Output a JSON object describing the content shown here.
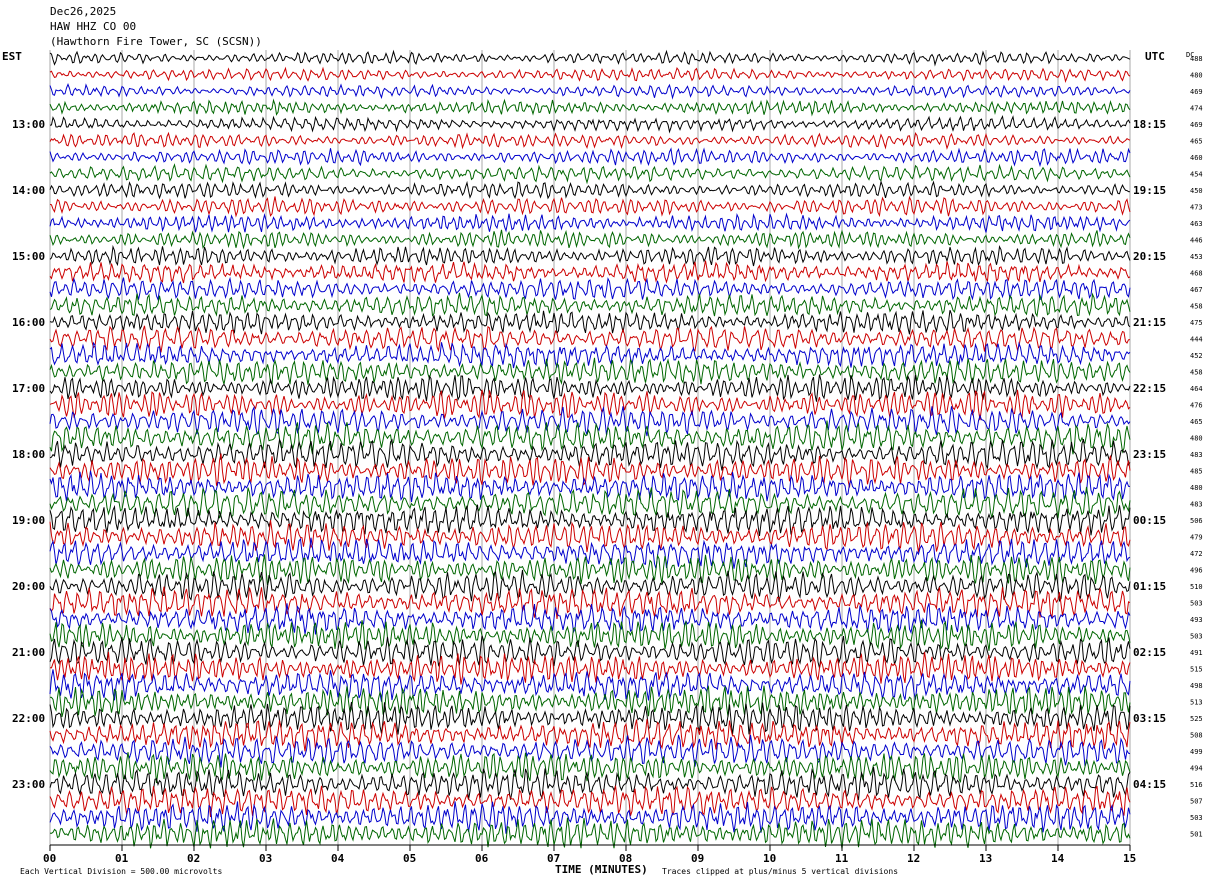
{
  "header": {
    "date": "Dec26,2025",
    "station": "HAW HHZ CO 00",
    "location": "(Hawthorn Fire Tower, SC (SCSN))"
  },
  "axes": {
    "left_label": "EST",
    "right_label": "UTC",
    "dc_label": "DC",
    "xlabel": "TIME (MINUTES)"
  },
  "footer": {
    "scale_note": "Each Vertical Division =  500.00 microvolts",
    "clip_note": "Traces clipped at plus/minus 5 vertical divisions"
  },
  "colors": {
    "trace_cycle": [
      "#000000",
      "#cc0000",
      "#0000cc",
      "#006600"
    ],
    "grid": "#aaaaaa"
  },
  "chart_data": {
    "type": "line",
    "title": "HAW HHZ CO 00",
    "xlabel": "TIME (MINUTES)",
    "xlim": [
      0,
      15
    ],
    "x_ticks": [
      "00",
      "01",
      "02",
      "03",
      "04",
      "05",
      "06",
      "07",
      "08",
      "09",
      "10",
      "11",
      "12",
      "13",
      "14",
      "15"
    ],
    "left_hour_labels": [
      {
        "row": 4,
        "label": "13:00"
      },
      {
        "row": 8,
        "label": "14:00"
      },
      {
        "row": 12,
        "label": "15:00"
      },
      {
        "row": 16,
        "label": "16:00"
      },
      {
        "row": 20,
        "label": "17:00"
      },
      {
        "row": 24,
        "label": "18:00"
      },
      {
        "row": 28,
        "label": "19:00"
      },
      {
        "row": 32,
        "label": "20:00"
      },
      {
        "row": 36,
        "label": "21:00"
      },
      {
        "row": 40,
        "label": "22:00"
      },
      {
        "row": 44,
        "label": "23:00"
      }
    ],
    "right_hour_labels": [
      {
        "row": 4,
        "label": "18:15"
      },
      {
        "row": 8,
        "label": "19:15"
      },
      {
        "row": 12,
        "label": "20:15"
      },
      {
        "row": 16,
        "label": "21:15"
      },
      {
        "row": 20,
        "label": "22:15"
      },
      {
        "row": 24,
        "label": "23:15"
      },
      {
        "row": 28,
        "label": "00:15"
      },
      {
        "row": 32,
        "label": "01:15"
      },
      {
        "row": 36,
        "label": "02:15"
      },
      {
        "row": 40,
        "label": "03:15"
      },
      {
        "row": 44,
        "label": "04:15"
      }
    ],
    "dc_offsets": [
      488,
      480,
      469,
      474,
      469,
      465,
      460,
      454,
      450,
      473,
      463,
      446,
      453,
      468,
      467,
      458,
      475,
      444,
      452,
      458,
      464,
      476,
      465,
      480,
      483,
      485,
      480,
      483,
      506,
      479,
      472,
      496,
      510,
      503,
      493,
      503,
      491,
      515,
      498,
      513,
      525,
      508,
      499,
      494,
      516,
      507,
      503,
      501
    ],
    "trace_amplitude": [
      0.35,
      0.35,
      0.35,
      0.4,
      0.4,
      0.4,
      0.45,
      0.45,
      0.45,
      0.5,
      0.5,
      0.5,
      0.55,
      0.6,
      0.6,
      0.65,
      0.65,
      0.7,
      0.7,
      0.75,
      0.75,
      0.8,
      0.8,
      0.85,
      0.85,
      0.85,
      0.85,
      0.85,
      0.85,
      0.85,
      0.85,
      0.85,
      0.85,
      0.85,
      0.85,
      0.85,
      0.85,
      0.85,
      0.85,
      0.85,
      0.85,
      0.85,
      0.85,
      0.85,
      0.85,
      0.85,
      0.85,
      0.85
    ]
  }
}
